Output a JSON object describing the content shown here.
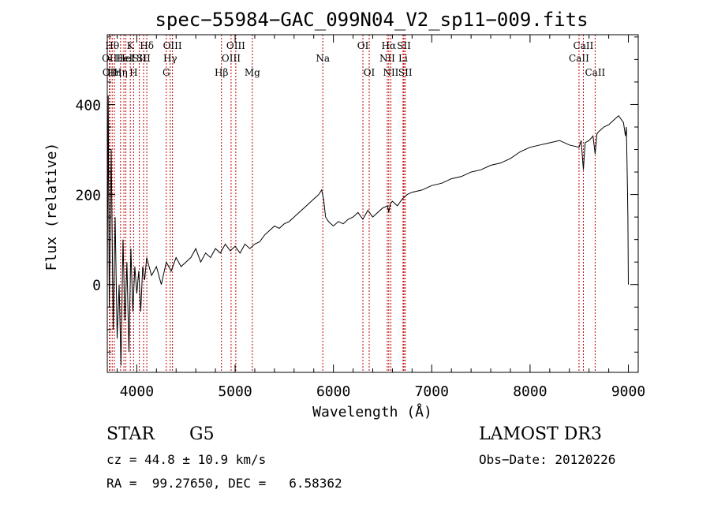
{
  "chart_data": {
    "type": "line",
    "title": "spec−55984−GAC_099N04_V2_sp11−009.fits",
    "xlabel": "Wavelength (Å)",
    "ylabel": "Flux (relative)",
    "xlim": [
      3700,
      9100
    ],
    "ylim": [
      -195,
      555
    ],
    "xticks": [
      4000,
      5000,
      6000,
      7000,
      8000,
      9000
    ],
    "yticks": [
      0,
      200,
      400
    ],
    "series": [
      {
        "name": "flux",
        "x": [
          3700,
          3710,
          3720,
          3740,
          3760,
          3780,
          3800,
          3820,
          3840,
          3860,
          3880,
          3900,
          3920,
          3940,
          3960,
          3980,
          4000,
          4020,
          4040,
          4060,
          4080,
          4100,
          4150,
          4200,
          4250,
          4300,
          4350,
          4400,
          4450,
          4500,
          4550,
          4600,
          4650,
          4700,
          4750,
          4800,
          4850,
          4900,
          4950,
          5000,
          5050,
          5100,
          5150,
          5200,
          5250,
          5300,
          5350,
          5400,
          5450,
          5500,
          5550,
          5600,
          5650,
          5700,
          5750,
          5800,
          5850,
          5880,
          5900,
          5920,
          5950,
          6000,
          6050,
          6100,
          6150,
          6200,
          6250,
          6300,
          6350,
          6400,
          6450,
          6500,
          6550,
          6563,
          6580,
          6600,
          6650,
          6700,
          6750,
          6800,
          6900,
          7000,
          7100,
          7200,
          7300,
          7400,
          7500,
          7600,
          7700,
          7800,
          7900,
          8000,
          8100,
          8200,
          8300,
          8400,
          8498,
          8520,
          8542,
          8560,
          8600,
          8640,
          8662,
          8680,
          8700,
          8750,
          8800,
          8850,
          8900,
          8950,
          8970,
          8980,
          8985,
          8990,
          8995,
          9000
        ],
        "y": [
          0,
          420,
          -50,
          300,
          -100,
          150,
          -120,
          0,
          -180,
          100,
          -80,
          50,
          -150,
          80,
          -60,
          40,
          -20,
          30,
          -60,
          40,
          10,
          60,
          20,
          40,
          0,
          50,
          30,
          60,
          40,
          50,
          60,
          80,
          50,
          70,
          60,
          80,
          70,
          90,
          75,
          85,
          70,
          90,
          80,
          90,
          95,
          110,
          120,
          130,
          125,
          135,
          140,
          150,
          160,
          170,
          180,
          190,
          200,
          210,
          190,
          150,
          140,
          130,
          140,
          135,
          145,
          150,
          160,
          145,
          165,
          150,
          160,
          170,
          175,
          160,
          180,
          185,
          175,
          190,
          200,
          205,
          210,
          220,
          225,
          235,
          240,
          250,
          255,
          265,
          270,
          280,
          295,
          305,
          310,
          315,
          320,
          310,
          305,
          320,
          255,
          315,
          320,
          330,
          290,
          335,
          340,
          350,
          355,
          365,
          375,
          360,
          330,
          350,
          280,
          220,
          150,
          0
        ]
      }
    ],
    "lines": [
      {
        "wl": 3722,
        "label": "OII",
        "row": 2
      },
      {
        "wl": 3727,
        "label": "OII",
        "row": 3
      },
      {
        "wl": 3750,
        "label": "Hθ",
        "row": 1
      },
      {
        "wl": 3772,
        "label": "Hη",
        "row": 3
      },
      {
        "wl": 3835,
        "label": "Hη",
        "row": 3
      },
      {
        "wl": 3869,
        "label": "HeI",
        "row": 2
      },
      {
        "wl": 3889,
        "label": "HeI",
        "row": 2
      },
      {
        "wl": 3934,
        "label": "K",
        "row": 1
      },
      {
        "wl": 3968,
        "label": "H",
        "row": 3
      },
      {
        "wl": 4026,
        "label": "SII",
        "row": 2
      },
      {
        "wl": 4069,
        "label": "SII",
        "row": 2
      },
      {
        "wl": 4102,
        "label": "Hδ",
        "row": 1
      },
      {
        "wl": 4300,
        "label": "G",
        "row": 3
      },
      {
        "wl": 4340,
        "label": "Hγ",
        "row": 2
      },
      {
        "wl": 4363,
        "label": "OIII",
        "row": 1
      },
      {
        "wl": 4861,
        "label": "Hβ",
        "row": 3
      },
      {
        "wl": 4959,
        "label": "OIII",
        "row": 2
      },
      {
        "wl": 5007,
        "label": "OIII",
        "row": 1
      },
      {
        "wl": 5175,
        "label": "Mg",
        "row": 3
      },
      {
        "wl": 5892,
        "label": "Na",
        "row": 2
      },
      {
        "wl": 6300,
        "label": "OI",
        "row": 1
      },
      {
        "wl": 6364,
        "label": "OI",
        "row": 3
      },
      {
        "wl": 6548,
        "label": "NII",
        "row": 2
      },
      {
        "wl": 6563,
        "label": "Hα",
        "row": 1
      },
      {
        "wl": 6584,
        "label": "NII",
        "row": 3
      },
      {
        "wl": 6708,
        "label": "Li",
        "row": 2
      },
      {
        "wl": 6717,
        "label": "SII",
        "row": 1
      },
      {
        "wl": 6731,
        "label": "SII",
        "row": 3
      },
      {
        "wl": 8498,
        "label": "CaII",
        "row": 2
      },
      {
        "wl": 8542,
        "label": "CaII",
        "row": 1
      },
      {
        "wl": 8662,
        "label": "CaII",
        "row": 3
      }
    ]
  },
  "info": {
    "class_label": "STAR",
    "subclass": "G5",
    "survey": "LAMOST DR3",
    "cz": "cz = 44.8 ± 10.9 km/s",
    "obs_date": "Obs−Date: 20120226",
    "coords": "RA =  99.27650, DEC =   6.58362"
  },
  "colors": {
    "line_marker": "#c00000",
    "spectrum": "#000000",
    "axes": "#000000",
    "background": "#ffffff"
  }
}
